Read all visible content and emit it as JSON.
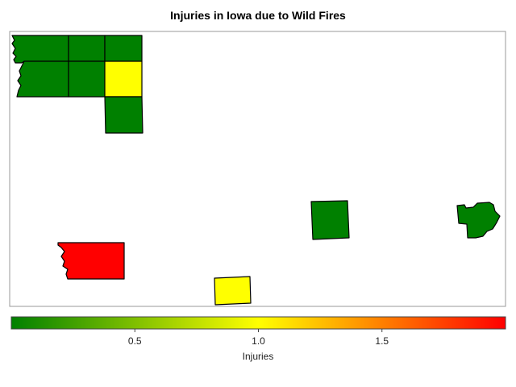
{
  "map": {
    "title": "Injuries in Iowa due to Wild Fires",
    "counties": [
      {
        "id": "nw-row1-col1",
        "value": 0.0
      },
      {
        "id": "nw-row1-col2",
        "value": 0.0
      },
      {
        "id": "nw-row1-col3",
        "value": 0.0
      },
      {
        "id": "nw-row2-col1",
        "value": 0.0
      },
      {
        "id": "nw-row2-col2",
        "value": 0.0
      },
      {
        "id": "nw-row2-col3",
        "value": 1.0
      },
      {
        "id": "nw-row3-col3",
        "value": 0.0
      },
      {
        "id": "central-east",
        "value": 0.0
      },
      {
        "id": "far-east",
        "value": 0.0
      },
      {
        "id": "southwest",
        "value": 2.0
      },
      {
        "id": "south-central",
        "value": 1.0
      }
    ]
  },
  "legend": {
    "title": "Injuries",
    "min": 0,
    "max": 2,
    "ticks": [
      "0.5",
      "1.0",
      "1.5"
    ],
    "colors": {
      "low": "#008000",
      "mid": "#ffff00",
      "high": "#ff0000"
    }
  }
}
